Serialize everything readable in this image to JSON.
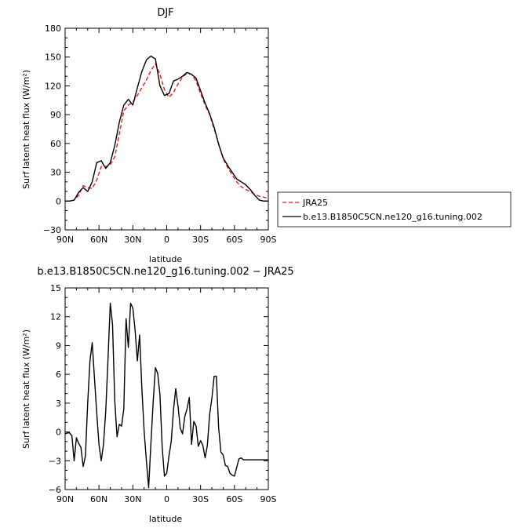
{
  "chart_data": [
    {
      "type": "line",
      "title": "DJF",
      "xlabel": "latitude",
      "ylabel": "Surf latent heat flux (W/m²)",
      "xlim": [
        90,
        -90
      ],
      "ylim": [
        -30,
        180
      ],
      "xticks": [
        90,
        60,
        30,
        0,
        -30,
        -60,
        -90
      ],
      "xtick_labels": [
        "90N",
        "60N",
        "30N",
        "0",
        "30S",
        "60S",
        "90S"
      ],
      "yticks": [
        -30,
        0,
        30,
        60,
        90,
        120,
        150,
        180
      ],
      "ytick_labels": [
        "−30",
        "0",
        "30",
        "60",
        "90",
        "120",
        "150",
        "180"
      ],
      "legend_placement": "outside-right",
      "series": [
        {
          "name": "JRA25",
          "color": "#e8191f",
          "dash": "dashed",
          "x": [
            90,
            86,
            82,
            78,
            74,
            70,
            66,
            62,
            58,
            54,
            50,
            46,
            42,
            38,
            34,
            30,
            26,
            22,
            18,
            14,
            10,
            6,
            2,
            -2,
            -6,
            -10,
            -14,
            -18,
            -22,
            -26,
            -30,
            -34,
            -38,
            -42,
            -46,
            -50,
            -54,
            -58,
            -62,
            -66,
            -70,
            -74,
            -78,
            -82,
            -86,
            -90
          ],
          "y": [
            0,
            0,
            1,
            6,
            16,
            14,
            13,
            22,
            36,
            36,
            38,
            46,
            70,
            94,
            100,
            103,
            110,
            118,
            126,
            136,
            143,
            132,
            116,
            108,
            113,
            122,
            129,
            133,
            132,
            125,
            112,
            100,
            90,
            75,
            60,
            44,
            35,
            27,
            20,
            15,
            12,
            10,
            7,
            5,
            4,
            3
          ]
        },
        {
          "name": "b.e13.B1850C5CN.ne120_g16.tuning.002",
          "color": "#000000",
          "dash": "solid",
          "x": [
            90,
            86,
            82,
            78,
            74,
            70,
            66,
            62,
            58,
            54,
            50,
            46,
            42,
            38,
            34,
            30,
            26,
            22,
            18,
            14,
            10,
            6,
            2,
            -2,
            -6,
            -10,
            -14,
            -18,
            -22,
            -26,
            -30,
            -34,
            -38,
            -42,
            -46,
            -50,
            -54,
            -58,
            -62,
            -66,
            -70,
            -74,
            -78,
            -82,
            -86,
            -90
          ],
          "y": [
            0,
            0,
            1,
            9,
            14,
            10,
            20,
            40,
            42,
            34,
            40,
            58,
            82,
            100,
            106,
            100,
            118,
            135,
            147,
            151,
            148,
            120,
            110,
            112,
            125,
            127,
            130,
            134,
            132,
            128,
            115,
            102,
            91,
            77,
            59,
            45,
            37,
            30,
            23,
            20,
            17,
            12,
            6,
            1,
            0,
            0
          ]
        }
      ]
    },
    {
      "type": "line",
      "title": "b.e13.B1850C5CN.ne120_g16.tuning.002 − JRA25",
      "xlabel": "latitude",
      "ylabel": "Surf latent heat flux (W/m²)",
      "xlim": [
        90,
        -90
      ],
      "ylim": [
        -6,
        15
      ],
      "xticks": [
        90,
        60,
        30,
        0,
        -30,
        -60,
        -90
      ],
      "xtick_labels": [
        "90N",
        "60N",
        "30N",
        "0",
        "30S",
        "60S",
        "90S"
      ],
      "yticks": [
        -6,
        -3,
        0,
        3,
        6,
        9,
        12,
        15
      ],
      "ytick_labels": [
        "−6",
        "−3",
        "0",
        "3",
        "6",
        "9",
        "12",
        "15"
      ],
      "series": [
        {
          "color": "#000000",
          "dash": "solid",
          "x": [
            90,
            88,
            86,
            84,
            82,
            80,
            78,
            76,
            74,
            72,
            70,
            68,
            66,
            64,
            62,
            60,
            58,
            56,
            54,
            52,
            50,
            48,
            46,
            44,
            42,
            40,
            38,
            36,
            34,
            32,
            30,
            28,
            26,
            24,
            22,
            20,
            18,
            16,
            14,
            12,
            10,
            8,
            6,
            4,
            2,
            0,
            -2,
            -4,
            -6,
            -8,
            -10,
            -12,
            -14,
            -16,
            -18,
            -20,
            -22,
            -24,
            -26,
            -28,
            -30,
            -32,
            -34,
            -36,
            -38,
            -40,
            -42,
            -44,
            -46,
            -48,
            -50,
            -52,
            -54,
            -56,
            -58,
            -60,
            -62,
            -64,
            -66,
            -68,
            -70,
            -72,
            -74,
            -76,
            -78,
            -80,
            -82,
            -84,
            -86,
            -88,
            -90
          ],
          "y": [
            -0.2,
            -0.1,
            -0.1,
            -0.4,
            -3.0,
            -0.6,
            -1.2,
            -1.6,
            -3.6,
            -2.5,
            3.0,
            7.4,
            9.3,
            5.6,
            2.0,
            -1.3,
            -3.0,
            -1.3,
            2.2,
            7.6,
            13.4,
            11.2,
            3.2,
            -0.5,
            0.8,
            0.6,
            2.4,
            11.8,
            8.8,
            13.4,
            12.9,
            10.6,
            7.4,
            10.1,
            4.5,
            0.1,
            -3.0,
            -5.8,
            -1.2,
            3.1,
            6.7,
            6.1,
            3.9,
            -1.6,
            -4.6,
            -4.3,
            -2.5,
            -1.0,
            2.3,
            4.5,
            2.7,
            0.4,
            -0.2,
            1.6,
            2.4,
            3.6,
            -1.3,
            1.1,
            0.6,
            -1.5,
            -0.9,
            -1.4,
            -2.7,
            -1.4,
            1.8,
            3.5,
            5.8,
            5.8,
            0.4,
            -2.1,
            -2.4,
            -3.5,
            -3.6,
            -4.3,
            -4.5,
            -4.6,
            -3.7,
            -2.8,
            -2.7,
            -2.9,
            -2.9,
            -2.9,
            -2.9,
            -2.9,
            -2.9,
            -2.9,
            -2.9,
            -2.9,
            -2.9,
            -2.9,
            -2.9
          ]
        }
      ]
    }
  ]
}
